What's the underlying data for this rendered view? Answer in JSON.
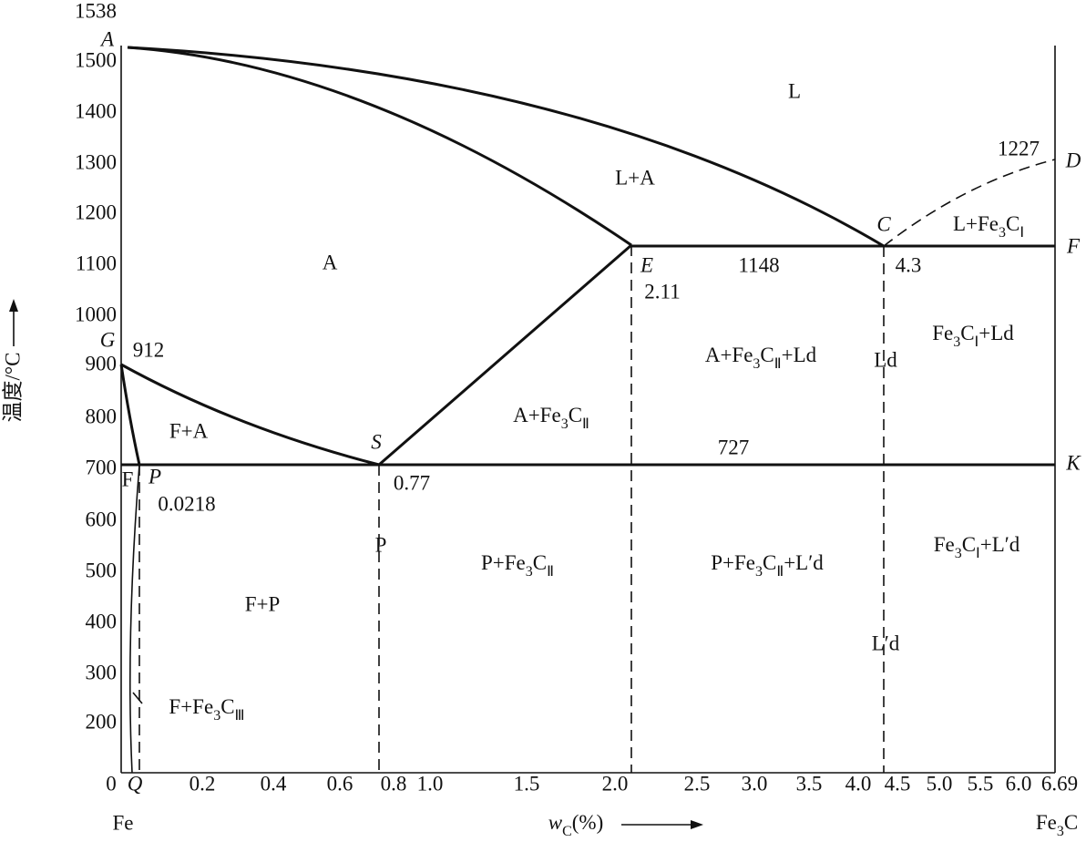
{
  "y_axis": {
    "title": "温度/°C",
    "ticks": [
      "1538",
      "1500",
      "1400",
      "1300",
      "1200",
      "1100",
      "1000",
      "900",
      "800",
      "700",
      "600",
      "500",
      "400",
      "300",
      "200"
    ]
  },
  "x_axis": {
    "title": [
      "w",
      "C",
      "(%)"
    ],
    "ticks": [
      "0",
      "Q",
      "0.2",
      "0.4",
      "0.6",
      "0.8",
      "1.0",
      "1.5",
      "2.0",
      "2.5",
      "3.0",
      "3.5",
      "4.0",
      "4.5",
      "5.0",
      "5.5",
      "6.0",
      "6.69"
    ],
    "left_end": "Fe",
    "right_end": [
      "Fe",
      "3",
      "C"
    ]
  },
  "points": [
    "A",
    "G",
    "P",
    "S",
    "E",
    "C",
    "D",
    "F",
    "K"
  ],
  "point_values": [
    "912",
    "0.77",
    "0.0218",
    "2.11",
    "1148",
    "4.3",
    "1227",
    "727"
  ],
  "regions": [
    "L",
    "L+A",
    "A",
    [
      "L+Fe",
      "3",
      "C",
      "Ⅰ"
    ],
    [
      "Fe",
      "3",
      "C",
      "Ⅰ",
      "+Ld"
    ],
    [
      "A+Fe",
      "3",
      "C",
      "Ⅱ",
      "+Ld"
    ],
    "Ld",
    "F+A",
    [
      "A+Fe",
      "3",
      "C",
      "Ⅱ"
    ],
    "F",
    "P",
    [
      "P+Fe",
      "3",
      "C",
      "Ⅱ"
    ],
    [
      "P+Fe",
      "3",
      "C",
      "Ⅱ",
      "+L′d"
    ],
    [
      "Fe",
      "3",
      "C",
      "Ⅰ",
      "+L′d"
    ],
    "F+P",
    "L′d",
    [
      "F+Fe",
      "3",
      "C",
      "Ⅲ"
    ]
  ]
}
